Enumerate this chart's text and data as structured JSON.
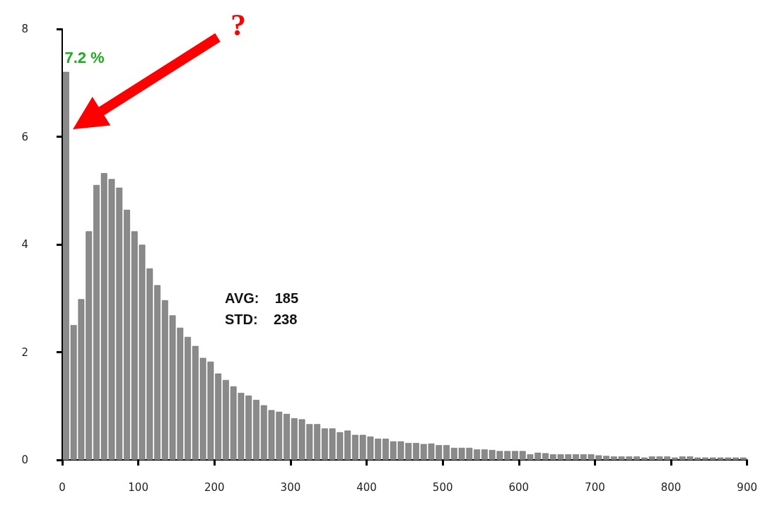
{
  "chart_data": {
    "type": "histogram",
    "bins": [
      0,
      10,
      20,
      30,
      40,
      50,
      60,
      70,
      80,
      90,
      100,
      110,
      120,
      130,
      140,
      150,
      160,
      170,
      180,
      190,
      200,
      210,
      220,
      230,
      240,
      250,
      260,
      270,
      280,
      290,
      300,
      310,
      320,
      330,
      340,
      350,
      360,
      370,
      380,
      390,
      400,
      410,
      420,
      430,
      440,
      450,
      460,
      470,
      480,
      490,
      500,
      510,
      520,
      530,
      540,
      550,
      560,
      570,
      580,
      590,
      600,
      610,
      620,
      630,
      640,
      650,
      660,
      670,
      680,
      690,
      700,
      710,
      720,
      730,
      740,
      750,
      760,
      770,
      780,
      790,
      800,
      810,
      820,
      830,
      840,
      850,
      860,
      870,
      880,
      890,
      900
    ],
    "values": [
      7.2,
      2.5,
      2.98,
      4.24,
      5.1,
      5.32,
      5.21,
      5.05,
      4.64,
      4.24,
      3.99,
      3.55,
      3.24,
      2.96,
      2.68,
      2.45,
      2.28,
      2.11,
      1.89,
      1.82,
      1.6,
      1.48,
      1.36,
      1.24,
      1.19,
      1.11,
      1.01,
      0.92,
      0.89,
      0.85,
      0.77,
      0.75,
      0.66,
      0.66,
      0.58,
      0.58,
      0.51,
      0.54,
      0.46,
      0.46,
      0.43,
      0.39,
      0.39,
      0.34,
      0.34,
      0.31,
      0.31,
      0.29,
      0.3,
      0.27,
      0.27,
      0.22,
      0.22,
      0.22,
      0.19,
      0.19,
      0.18,
      0.16,
      0.16,
      0.16,
      0.16,
      0.1,
      0.13,
      0.12,
      0.1,
      0.1,
      0.1,
      0.1,
      0.1,
      0.1,
      0.08,
      0.07,
      0.06,
      0.06,
      0.06,
      0.06,
      0.04,
      0.06,
      0.06,
      0.06,
      0.04,
      0.06,
      0.06,
      0.04,
      0.04,
      0.04,
      0.04,
      0.04,
      0.04,
      0.04
    ],
    "color": "#8a8a8a",
    "xlim": [
      0,
      900
    ],
    "xticks": [
      0,
      100,
      200,
      300,
      400,
      500,
      600,
      700,
      800,
      900
    ],
    "ylim": [
      0,
      8
    ],
    "yticks": [
      0,
      2,
      4,
      6,
      8
    ],
    "grid": false,
    "annotations": [
      {
        "text": "7.2 %",
        "x": 5,
        "y": 7.2
      },
      "?",
      "AVG:    185",
      "STD:    238"
    ]
  }
}
